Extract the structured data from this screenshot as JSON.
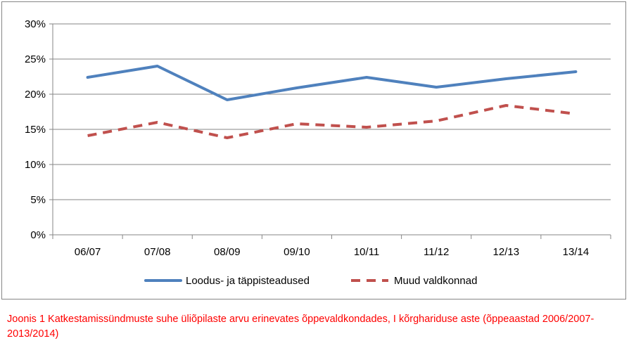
{
  "chart_data": {
    "type": "line",
    "categories": [
      "06/07",
      "07/08",
      "08/09",
      "09/10",
      "10/11",
      "11/12",
      "12/13",
      "13/14"
    ],
    "series": [
      {
        "name": "Loodus- ja täppisteadused",
        "values": [
          22.4,
          24.0,
          19.2,
          20.9,
          22.4,
          21.0,
          22.2,
          23.2
        ],
        "color": "#4f81bd",
        "style": "solid"
      },
      {
        "name": "Muud valdkonnad",
        "values": [
          14.1,
          16.0,
          13.8,
          15.8,
          15.3,
          16.2,
          18.4,
          17.2
        ],
        "color": "#c0504d",
        "style": "dashed"
      }
    ],
    "ylim": [
      0,
      30
    ],
    "yticks": [
      0,
      5,
      10,
      15,
      20,
      25,
      30
    ],
    "ytick_labels": [
      "0%",
      "5%",
      "10%",
      "15%",
      "20%",
      "25%",
      "30%"
    ],
    "y_unit": "%",
    "grid": true,
    "legend_position": "bottom"
  },
  "caption": "Joonis 1 Katkestamissündmuste suhe üliõpilaste arvu erinevates õppevaldkondades, I kõrghariduse aste (õppeaastad 2006/2007-2013/2014)"
}
